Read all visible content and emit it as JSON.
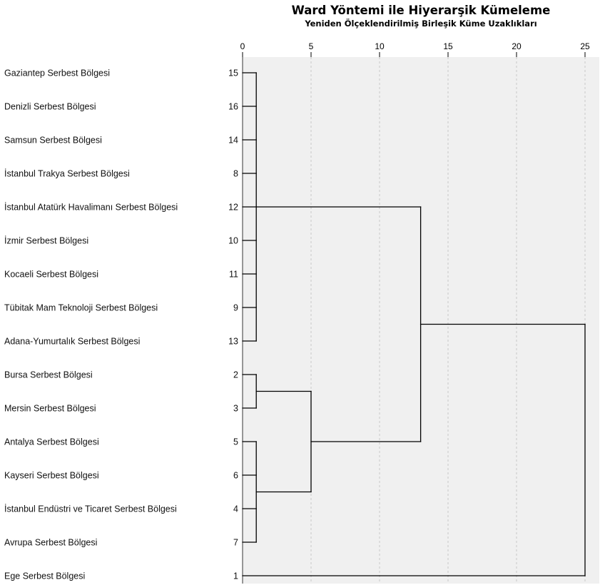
{
  "chart_data": {
    "type": "dendrogram",
    "title": "Ward  Yöntemi ile Hiyerarşik Kümeleme",
    "subtitle": "Yeniden Ölçeklendirilmiş Birleşik Küme Uzaklıkları",
    "x_ticks": [
      0,
      5,
      10,
      15,
      20,
      25
    ],
    "xlim": [
      0,
      25
    ],
    "grid": "vertical dashed",
    "leaves": [
      {
        "id": "15",
        "name": "Gaziantep Serbest Bölgesi"
      },
      {
        "id": "16",
        "name": "Denizli Serbest Bölgesi"
      },
      {
        "id": "14",
        "name": "Samsun Serbest Bölgesi"
      },
      {
        "id": "8",
        "name": "İstanbul Trakya Serbest Bölgesi"
      },
      {
        "id": "12",
        "name": "İstanbul Atatürk Havalimanı Serbest Bölgesi"
      },
      {
        "id": "10",
        "name": "İzmir Serbest Bölgesi"
      },
      {
        "id": "11",
        "name": "Kocaeli Serbest Bölgesi"
      },
      {
        "id": "9",
        "name": "Tübitak Mam Teknoloji Serbest Bölgesi"
      },
      {
        "id": "13",
        "name": "Adana-Yumurtalık Serbest Bölgesi"
      },
      {
        "id": "2",
        "name": "Bursa Serbest Bölgesi"
      },
      {
        "id": "3",
        "name": "Mersin Serbest Bölgesi"
      },
      {
        "id": "5",
        "name": "Antalya Serbest Bölgesi"
      },
      {
        "id": "6",
        "name": "Kayseri Serbest Bölgesi"
      },
      {
        "id": "4",
        "name": "İstanbul Endüstri ve Ticaret Serbest Bölgesi"
      },
      {
        "id": "7",
        "name": "Avrupa Serbest Bölgesi"
      },
      {
        "id": "1",
        "name": "Ege Serbest Bölgesi"
      }
    ],
    "merges": [
      {
        "members": [
          "15",
          "16",
          "14",
          "8",
          "12",
          "10",
          "11",
          "9",
          "13"
        ],
        "height": 1
      },
      {
        "members": [
          "2",
          "3"
        ],
        "height": 1
      },
      {
        "members": [
          "5",
          "6",
          "4",
          "7"
        ],
        "height": 1
      },
      {
        "members": [
          "2",
          "3",
          "5",
          "6",
          "4",
          "7"
        ],
        "height": 5
      },
      {
        "members": [
          "15",
          "16",
          "14",
          "8",
          "12",
          "10",
          "11",
          "9",
          "13",
          "2",
          "3",
          "5",
          "6",
          "4",
          "7"
        ],
        "height": 13
      },
      {
        "members": [
          "15",
          "16",
          "14",
          "8",
          "12",
          "10",
          "11",
          "9",
          "13",
          "2",
          "3",
          "5",
          "6",
          "4",
          "7",
          "1"
        ],
        "height": 25
      }
    ]
  }
}
